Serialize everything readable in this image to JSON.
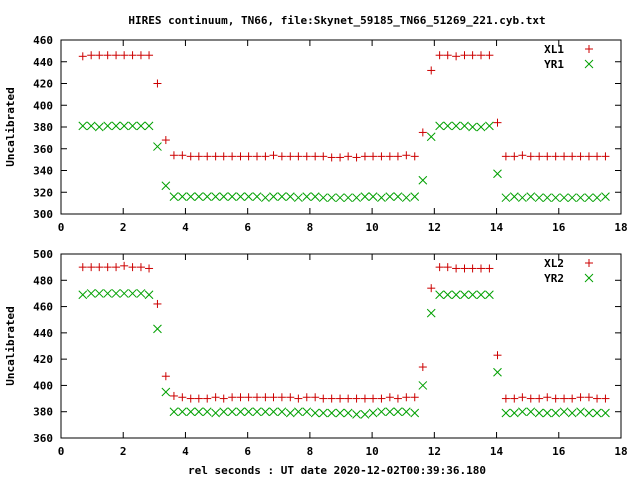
{
  "title": "HIRES continuum, TN66, file:Skynet_59185_TN66_51269_221.cyb.txt",
  "xlabel": "rel seconds : UT date 2020-12-02T00:39:36.180",
  "chart_data": [
    {
      "type": "scatter",
      "ylabel": "Uncalibrated",
      "xlim": [
        0,
        18
      ],
      "ylim": [
        300,
        460
      ],
      "xticks": [
        0,
        2,
        4,
        6,
        8,
        10,
        12,
        14,
        16,
        18
      ],
      "yticks": [
        300,
        320,
        340,
        360,
        380,
        400,
        420,
        440,
        460
      ],
      "grid": false,
      "legend_position": "top-right",
      "series": [
        {
          "name": "XL1",
          "marker": "plus",
          "color": "#cc0000",
          "x": [
            0.7,
            0.97,
            1.23,
            1.5,
            1.77,
            2.03,
            2.3,
            2.57,
            2.83,
            3.1,
            3.37,
            3.63,
            3.9,
            4.17,
            4.43,
            4.7,
            4.97,
            5.23,
            5.5,
            5.77,
            6.03,
            6.3,
            6.57,
            6.83,
            7.1,
            7.37,
            7.63,
            7.9,
            8.17,
            8.43,
            8.7,
            8.97,
            9.23,
            9.5,
            9.77,
            10.03,
            10.3,
            10.57,
            10.83,
            11.1,
            11.37,
            11.63,
            11.9,
            12.17,
            12.43,
            12.7,
            12.97,
            13.23,
            13.5,
            13.77,
            14.03,
            14.3,
            14.57,
            14.83,
            15.1,
            15.37,
            15.63,
            15.9,
            16.17,
            16.43,
            16.7,
            16.97,
            17.23,
            17.5
          ],
          "y": [
            445,
            446,
            446,
            446,
            446,
            446,
            446,
            446,
            446,
            420,
            368,
            354,
            354,
            353,
            353,
            353,
            353,
            353,
            353,
            353,
            353,
            353,
            353,
            354,
            353,
            353,
            353,
            353,
            353,
            353,
            352,
            352,
            353,
            352,
            353,
            353,
            353,
            353,
            353,
            354,
            353,
            375,
            432,
            446,
            446,
            445,
            446,
            446,
            446,
            446,
            384,
            353,
            353,
            354,
            353,
            353,
            353,
            353,
            353,
            353,
            353,
            353,
            353,
            353
          ]
        },
        {
          "name": "YR1",
          "marker": "cross",
          "color": "#00a000",
          "x": [
            0.7,
            0.97,
            1.23,
            1.5,
            1.77,
            2.03,
            2.3,
            2.57,
            2.83,
            3.1,
            3.37,
            3.63,
            3.9,
            4.17,
            4.43,
            4.7,
            4.97,
            5.23,
            5.5,
            5.77,
            6.03,
            6.3,
            6.57,
            6.83,
            7.1,
            7.37,
            7.63,
            7.9,
            8.17,
            8.43,
            8.7,
            8.97,
            9.23,
            9.5,
            9.77,
            10.03,
            10.3,
            10.57,
            10.83,
            11.1,
            11.37,
            11.63,
            11.9,
            12.17,
            12.43,
            12.7,
            12.97,
            13.23,
            13.5,
            13.77,
            14.03,
            14.3,
            14.57,
            14.83,
            15.1,
            15.37,
            15.63,
            15.9,
            16.17,
            16.43,
            16.7,
            16.97,
            17.23,
            17.5
          ],
          "y": [
            381,
            381,
            380,
            381,
            381,
            381,
            381,
            381,
            381,
            362,
            326,
            316,
            316,
            316,
            316,
            316,
            316,
            316,
            316,
            316,
            316,
            316,
            315,
            316,
            316,
            316,
            315,
            316,
            316,
            315,
            315,
            315,
            315,
            315,
            316,
            316,
            315,
            316,
            316,
            315,
            316,
            331,
            371,
            381,
            381,
            381,
            381,
            380,
            380,
            381,
            337,
            315,
            316,
            315,
            316,
            315,
            315,
            315,
            315,
            315,
            315,
            315,
            315,
            316
          ]
        }
      ]
    },
    {
      "type": "scatter",
      "ylabel": "Uncalibrated",
      "xlim": [
        0,
        18
      ],
      "ylim": [
        360,
        500
      ],
      "xticks": [
        0,
        2,
        4,
        6,
        8,
        10,
        12,
        14,
        16,
        18
      ],
      "yticks": [
        360,
        380,
        400,
        420,
        440,
        460,
        480,
        500
      ],
      "grid": false,
      "legend_position": "top-right",
      "series": [
        {
          "name": "XL2",
          "marker": "plus",
          "color": "#cc0000",
          "x": [
            0.7,
            0.97,
            1.23,
            1.5,
            1.77,
            2.03,
            2.3,
            2.57,
            2.83,
            3.1,
            3.37,
            3.63,
            3.9,
            4.17,
            4.43,
            4.7,
            4.97,
            5.23,
            5.5,
            5.77,
            6.03,
            6.3,
            6.57,
            6.83,
            7.1,
            7.37,
            7.63,
            7.9,
            8.17,
            8.43,
            8.7,
            8.97,
            9.23,
            9.5,
            9.77,
            10.03,
            10.3,
            10.57,
            10.83,
            11.1,
            11.37,
            11.63,
            11.9,
            12.17,
            12.43,
            12.7,
            12.97,
            13.23,
            13.5,
            13.77,
            14.03,
            14.3,
            14.57,
            14.83,
            15.1,
            15.37,
            15.63,
            15.9,
            16.17,
            16.43,
            16.7,
            16.97,
            17.23,
            17.5
          ],
          "y": [
            490,
            490,
            490,
            490,
            490,
            491,
            490,
            490,
            489,
            462,
            407,
            392,
            391,
            390,
            390,
            390,
            391,
            390,
            391,
            391,
            391,
            391,
            391,
            391,
            391,
            391,
            390,
            391,
            391,
            390,
            390,
            390,
            390,
            390,
            390,
            390,
            390,
            391,
            390,
            391,
            391,
            414,
            474,
            490,
            490,
            489,
            489,
            489,
            489,
            489,
            423,
            390,
            390,
            391,
            390,
            390,
            391,
            390,
            390,
            390,
            391,
            391,
            390,
            390
          ]
        },
        {
          "name": "YR2",
          "marker": "cross",
          "color": "#00a000",
          "x": [
            0.7,
            0.97,
            1.23,
            1.5,
            1.77,
            2.03,
            2.3,
            2.57,
            2.83,
            3.1,
            3.37,
            3.63,
            3.9,
            4.17,
            4.43,
            4.7,
            4.97,
            5.23,
            5.5,
            5.77,
            6.03,
            6.3,
            6.57,
            6.83,
            7.1,
            7.37,
            7.63,
            7.9,
            8.17,
            8.43,
            8.7,
            8.97,
            9.23,
            9.5,
            9.77,
            10.03,
            10.3,
            10.57,
            10.83,
            11.1,
            11.37,
            11.63,
            11.9,
            12.17,
            12.43,
            12.7,
            12.97,
            13.23,
            13.5,
            13.77,
            14.03,
            14.3,
            14.57,
            14.83,
            15.1,
            15.37,
            15.63,
            15.9,
            16.17,
            16.43,
            16.7,
            16.97,
            17.23,
            17.5
          ],
          "y": [
            469,
            470,
            470,
            470,
            470,
            470,
            470,
            470,
            469,
            443,
            395,
            380,
            380,
            380,
            380,
            380,
            379,
            380,
            380,
            380,
            380,
            380,
            380,
            380,
            380,
            379,
            380,
            380,
            379,
            379,
            379,
            379,
            379,
            378,
            378,
            379,
            380,
            380,
            380,
            380,
            379,
            400,
            455,
            469,
            469,
            469,
            469,
            469,
            469,
            469,
            410,
            379,
            379,
            380,
            380,
            379,
            379,
            379,
            380,
            379,
            380,
            379,
            379,
            379
          ]
        }
      ]
    }
  ]
}
